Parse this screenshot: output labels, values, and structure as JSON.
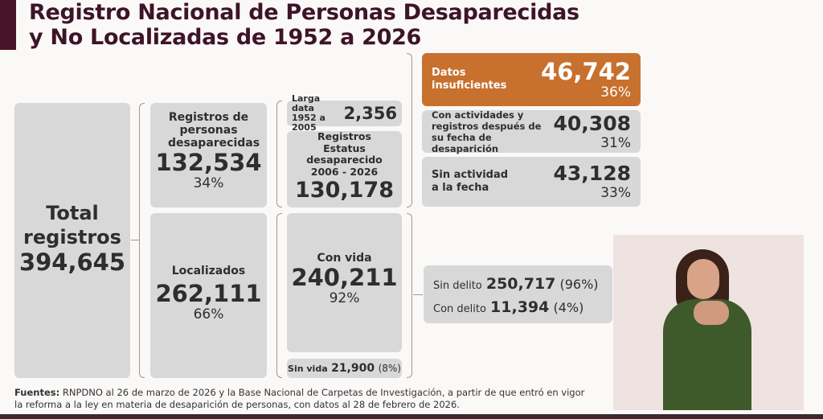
{
  "title_line1": "Registro Nacional de Personas Desaparecidas",
  "title_line2": "y No Localizadas de 1952 a 2026",
  "total": {
    "label_line1": "Total",
    "label_line2": "registros",
    "value": "394,645"
  },
  "desaparecidas": {
    "label": "Registros de personas desaparecidas",
    "value": "132,534",
    "pct": "34%"
  },
  "localizados": {
    "label": "Localizados",
    "value": "262,111",
    "pct": "66%"
  },
  "larga_data": {
    "label_line1": "Larga data",
    "label_line2": "1952 a 2005",
    "value": "2,356"
  },
  "estatus": {
    "label_line1": "Registros",
    "label_line2": "Estatus",
    "label_line3": "desaparecido",
    "label_line4": "2006 - 2026",
    "value": "130,178"
  },
  "con_vida": {
    "label": "Con vida",
    "value": "240,211",
    "pct": "92%"
  },
  "sin_vida": {
    "label": "Sin vida",
    "value": "21,900",
    "pct": "(8%)"
  },
  "datos_insuficientes": {
    "label_line1": "Datos",
    "label_line2": "insuficientes",
    "value": "46,742",
    "pct": "36%",
    "color": "#c8702e"
  },
  "con_actividades": {
    "label_line1": "Con actividades y",
    "label_line2": "registros después de",
    "label_line3": "su fecha de desaparición",
    "value": "40,308",
    "pct": "31%"
  },
  "sin_actividad": {
    "label_line1": "Sin actividad",
    "label_line2": "a la fecha",
    "value": "43,128",
    "pct": "33%"
  },
  "sin_delito": {
    "label": "Sin delito",
    "value": "250,717",
    "pct": "(96%)"
  },
  "con_delito": {
    "label": "Con delito",
    "value": "11,394",
    "pct": "(4%)"
  },
  "footer": {
    "bold": "Fuentes:",
    "text": " RNPDNO al 26 de marzo de 2026 y la Base Nacional de Carpetas de Investigación, a partir de que entró en vigor la reforma a la ley en materia de desaparición de personas, con datos al 28 de febrero de 2026."
  },
  "colors": {
    "title": "#3d1428",
    "box": "#d8d8d8",
    "accent": "#c8702e"
  }
}
